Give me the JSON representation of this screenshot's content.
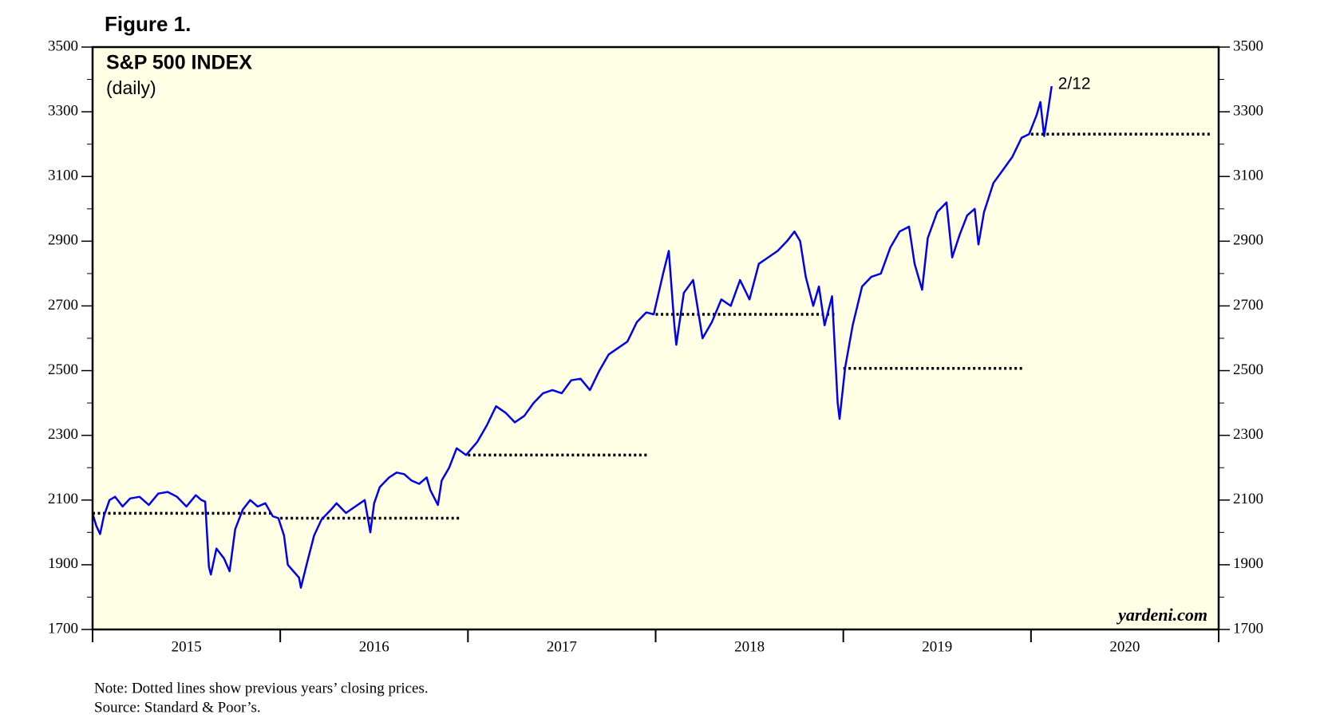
{
  "figure_label": "Figure 1.",
  "chart_data": {
    "type": "line",
    "title": "S&P 500 INDEX",
    "subtitle": "(daily)",
    "annotation": "2/12",
    "watermark": "yardeni.com",
    "note": "Note: Dotted lines show previous years’ closing prices.",
    "source": "Source: Standard & Poor’s.",
    "categories": [
      "2015",
      "2016",
      "2017",
      "2018",
      "2019",
      "2020"
    ],
    "xlim": [
      2015,
      2021
    ],
    "ylim": [
      1700,
      3500
    ],
    "yticks": [
      1700,
      1900,
      2100,
      2300,
      2500,
      2700,
      2900,
      3100,
      3300,
      3500
    ],
    "yminor": [
      1800,
      2000,
      2200,
      2400,
      2600,
      2800,
      3000,
      3200,
      3400
    ],
    "series": [
      {
        "name": "S&P 500 INDEX",
        "color": "#0000ee",
        "x": [
          2015.0,
          2015.02,
          2015.04,
          2015.06,
          2015.09,
          2015.12,
          2015.16,
          2015.2,
          2015.25,
          2015.3,
          2015.35,
          2015.4,
          2015.45,
          2015.5,
          2015.55,
          2015.58,
          2015.6,
          2015.62,
          2015.63,
          2015.66,
          2015.7,
          2015.73,
          2015.76,
          2015.8,
          2015.84,
          2015.88,
          2015.92,
          2015.96,
          2015.99,
          2016.02,
          2016.04,
          2016.07,
          2016.1,
          2016.11,
          2016.14,
          2016.18,
          2016.22,
          2016.27,
          2016.3,
          2016.35,
          2016.4,
          2016.45,
          2016.48,
          2016.5,
          2016.53,
          2016.58,
          2016.62,
          2016.66,
          2016.7,
          2016.74,
          2016.78,
          2016.8,
          2016.84,
          2016.86,
          2016.9,
          2016.94,
          2016.99,
          2017.05,
          2017.1,
          2017.15,
          2017.2,
          2017.25,
          2017.3,
          2017.35,
          2017.4,
          2017.45,
          2017.5,
          2017.55,
          2017.6,
          2017.65,
          2017.7,
          2017.75,
          2017.8,
          2017.85,
          2017.9,
          2017.95,
          2017.99,
          2018.04,
          2018.07,
          2018.1,
          2018.11,
          2018.15,
          2018.2,
          2018.25,
          2018.3,
          2018.35,
          2018.4,
          2018.45,
          2018.5,
          2018.55,
          2018.6,
          2018.65,
          2018.7,
          2018.74,
          2018.77,
          2018.8,
          2018.84,
          2018.87,
          2018.9,
          2018.94,
          2018.97,
          2018.98,
          2019.01,
          2019.05,
          2019.1,
          2019.15,
          2019.2,
          2019.25,
          2019.3,
          2019.35,
          2019.38,
          2019.42,
          2019.45,
          2019.5,
          2019.55,
          2019.58,
          2019.62,
          2019.66,
          2019.7,
          2019.72,
          2019.75,
          2019.8,
          2019.85,
          2019.9,
          2019.95,
          2019.99,
          2020.03,
          2020.05,
          2020.07,
          2020.09,
          2020.11
        ],
        "values": [
          2058,
          2020,
          1995,
          2050,
          2100,
          2110,
          2080,
          2105,
          2110,
          2085,
          2120,
          2125,
          2110,
          2080,
          2115,
          2100,
          2095,
          1893,
          1870,
          1950,
          1920,
          1880,
          2010,
          2070,
          2100,
          2080,
          2090,
          2050,
          2044,
          1990,
          1900,
          1880,
          1860,
          1829,
          1900,
          1990,
          2040,
          2070,
          2090,
          2060,
          2080,
          2100,
          2000,
          2090,
          2140,
          2170,
          2185,
          2180,
          2160,
          2150,
          2170,
          2130,
          2085,
          2160,
          2200,
          2260,
          2239,
          2280,
          2330,
          2390,
          2370,
          2340,
          2360,
          2400,
          2430,
          2440,
          2430,
          2470,
          2475,
          2440,
          2500,
          2550,
          2570,
          2590,
          2650,
          2680,
          2674,
          2800,
          2870,
          2640,
          2580,
          2740,
          2780,
          2600,
          2650,
          2720,
          2700,
          2780,
          2720,
          2830,
          2850,
          2870,
          2900,
          2930,
          2900,
          2790,
          2700,
          2760,
          2640,
          2730,
          2400,
          2351,
          2510,
          2640,
          2760,
          2790,
          2800,
          2880,
          2930,
          2945,
          2830,
          2750,
          2910,
          2990,
          3020,
          2850,
          2920,
          2980,
          3000,
          2890,
          2990,
          3080,
          3120,
          3160,
          3220,
          3231,
          3290,
          3330,
          3225,
          3300,
          3379
        ]
      }
    ],
    "reference_lines": [
      {
        "value": 2059,
        "start": 2015,
        "end": 2016
      },
      {
        "value": 2044,
        "start": 2016,
        "end": 2017
      },
      {
        "value": 2239,
        "start": 2017,
        "end": 2018
      },
      {
        "value": 2674,
        "start": 2018,
        "end": 2019
      },
      {
        "value": 2507,
        "start": 2019,
        "end": 2020
      },
      {
        "value": 3231,
        "start": 2020,
        "end": 2021
      }
    ]
  }
}
